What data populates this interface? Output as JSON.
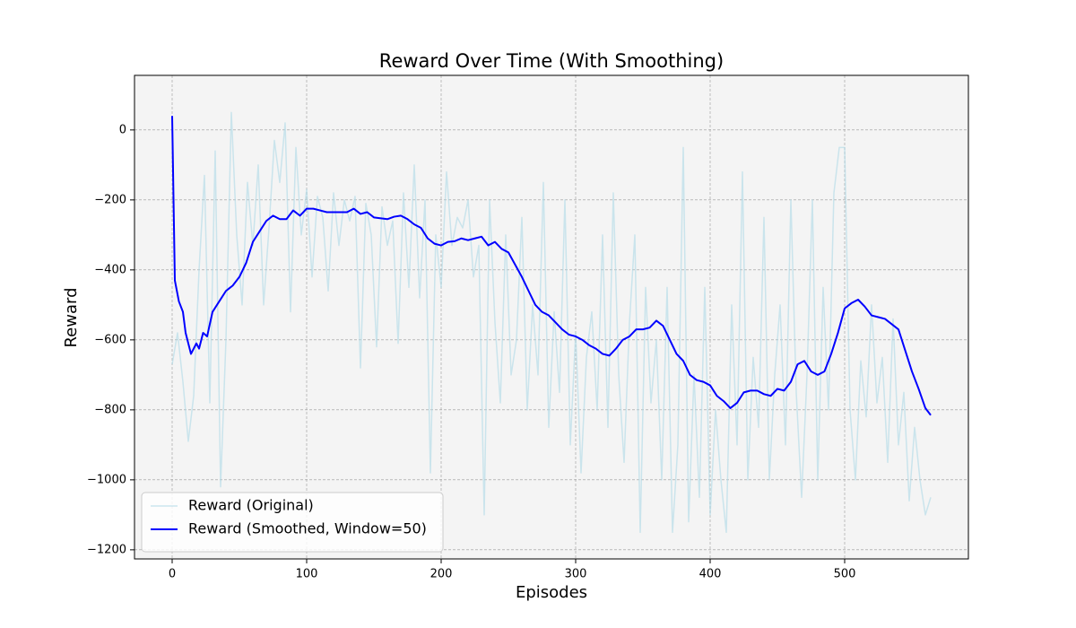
{
  "chart_data": {
    "type": "line",
    "title": "Reward Over Time (With Smoothing)",
    "x_label": "Episodes",
    "y_label": "Reward",
    "xlim": [
      -28,
      592
    ],
    "ylim": [
      -1226,
      156
    ],
    "xticks": [
      0,
      100,
      200,
      300,
      400,
      500
    ],
    "yticks": [
      {
        "value": -1200,
        "label": "−1200"
      },
      {
        "value": -1000,
        "label": "−1000"
      },
      {
        "value": -800,
        "label": "−800"
      },
      {
        "value": -600,
        "label": "−600"
      },
      {
        "value": -400,
        "label": "−400"
      },
      {
        "value": -200,
        "label": "−200"
      },
      0
    ],
    "grid": true,
    "legend": "lower left",
    "series": [
      {
        "name": "Reward (Original)",
        "color": "#add8e6",
        "opacity": 0.6,
        "width": 1.5,
        "x": [
          0,
          4,
          8,
          12,
          16,
          20,
          24,
          28,
          32,
          36,
          40,
          44,
          48,
          52,
          56,
          60,
          64,
          68,
          72,
          76,
          80,
          84,
          88,
          92,
          96,
          100,
          104,
          108,
          112,
          116,
          120,
          124,
          128,
          132,
          136,
          140,
          144,
          148,
          152,
          156,
          160,
          164,
          168,
          172,
          176,
          180,
          184,
          188,
          192,
          196,
          200,
          204,
          208,
          212,
          216,
          220,
          224,
          228,
          232,
          236,
          240,
          244,
          248,
          252,
          256,
          260,
          264,
          268,
          272,
          276,
          280,
          284,
          288,
          292,
          296,
          300,
          304,
          308,
          312,
          316,
          320,
          324,
          328,
          332,
          336,
          340,
          344,
          348,
          352,
          356,
          360,
          364,
          368,
          372,
          376,
          380,
          384,
          388,
          392,
          396,
          400,
          404,
          408,
          412,
          416,
          420,
          424,
          428,
          432,
          436,
          440,
          444,
          448,
          452,
          456,
          460,
          464,
          468,
          472,
          476,
          480,
          484,
          488,
          492,
          496,
          500,
          504,
          508,
          512,
          516,
          520,
          524,
          528,
          532,
          536,
          540,
          544,
          548,
          552,
          556,
          560,
          564
        ],
        "values": [
          -670,
          -580,
          -720,
          -890,
          -760,
          -400,
          -130,
          -780,
          -60,
          -1020,
          -600,
          50,
          -300,
          -500,
          -150,
          -330,
          -100,
          -500,
          -280,
          -30,
          -150,
          20,
          -520,
          -50,
          -300,
          -170,
          -420,
          -190,
          -250,
          -460,
          -180,
          -330,
          -200,
          -260,
          -190,
          -680,
          -210,
          -300,
          -620,
          -220,
          -330,
          -260,
          -610,
          -180,
          -450,
          -100,
          -480,
          -200,
          -980,
          -300,
          -450,
          -120,
          -330,
          -250,
          -280,
          -200,
          -420,
          -330,
          -1100,
          -200,
          -550,
          -780,
          -300,
          -700,
          -600,
          -250,
          -800,
          -500,
          -700,
          -150,
          -850,
          -520,
          -750,
          -200,
          -900,
          -580,
          -980,
          -650,
          -520,
          -800,
          -300,
          -850,
          -180,
          -700,
          -950,
          -550,
          -300,
          -1150,
          -450,
          -780,
          -600,
          -1000,
          -450,
          -1150,
          -900,
          -50,
          -1120,
          -700,
          -1050,
          -450,
          -1100,
          -800,
          -1000,
          -1150,
          -500,
          -900,
          -120,
          -1000,
          -650,
          -850,
          -250,
          -1000,
          -700,
          -500,
          -900,
          -200,
          -750,
          -1050,
          -700,
          -200,
          -1000,
          -450,
          -800,
          -180,
          -50,
          -50,
          -800,
          -1000,
          -660,
          -820,
          -500,
          -780,
          -650,
          -950,
          -540,
          -900,
          -750,
          -1060,
          -850,
          -1000,
          -1100,
          -1050
        ]
      },
      {
        "name": "Reward (Smoothed, Window=50)",
        "color": "#0000ff",
        "opacity": 1,
        "width": 2,
        "x": [
          0,
          2,
          5,
          8,
          10,
          14,
          18,
          20,
          23,
          26,
          30,
          35,
          40,
          45,
          50,
          55,
          60,
          65,
          70,
          75,
          80,
          85,
          90,
          95,
          100,
          105,
          110,
          115,
          120,
          130,
          135,
          140,
          145,
          150,
          160,
          165,
          170,
          175,
          180,
          185,
          190,
          195,
          200,
          205,
          210,
          215,
          220,
          225,
          230,
          235,
          240,
          245,
          250,
          255,
          260,
          265,
          270,
          275,
          280,
          285,
          290,
          295,
          300,
          305,
          310,
          315,
          320,
          325,
          330,
          335,
          340,
          345,
          350,
          355,
          360,
          365,
          370,
          375,
          380,
          385,
          390,
          395,
          400,
          405,
          410,
          415,
          420,
          425,
          430,
          435,
          440,
          445,
          450,
          455,
          460,
          465,
          470,
          475,
          480,
          485,
          490,
          495,
          500,
          505,
          510,
          515,
          520,
          525,
          530,
          535,
          540,
          545,
          550,
          555,
          560,
          564
        ],
        "values": [
          40,
          -430,
          -490,
          -520,
          -580,
          -640,
          -610,
          -625,
          -580,
          -590,
          -520,
          -490,
          -460,
          -445,
          -420,
          -380,
          -320,
          -290,
          -260,
          -245,
          -255,
          -255,
          -230,
          -245,
          -225,
          -225,
          -230,
          -235,
          -235,
          -235,
          -225,
          -240,
          -235,
          -250,
          -255,
          -248,
          -245,
          -255,
          -270,
          -280,
          -310,
          -325,
          -330,
          -320,
          -318,
          -310,
          -315,
          -310,
          -305,
          -330,
          -320,
          -340,
          -350,
          -385,
          -420,
          -460,
          -500,
          -520,
          -530,
          -550,
          -570,
          -585,
          -590,
          -600,
          -615,
          -625,
          -640,
          -645,
          -625,
          -600,
          -590,
          -570,
          -570,
          -565,
          -545,
          -560,
          -600,
          -640,
          -660,
          -700,
          -715,
          -720,
          -730,
          -760,
          -775,
          -795,
          -780,
          -750,
          -745,
          -745,
          -755,
          -760,
          -740,
          -745,
          -720,
          -670,
          -660,
          -690,
          -700,
          -690,
          -640,
          -580,
          -510,
          -495,
          -485,
          -505,
          -530,
          -535,
          -540,
          -555,
          -570,
          -630,
          -690,
          -740,
          -795,
          -815
        ]
      }
    ]
  }
}
